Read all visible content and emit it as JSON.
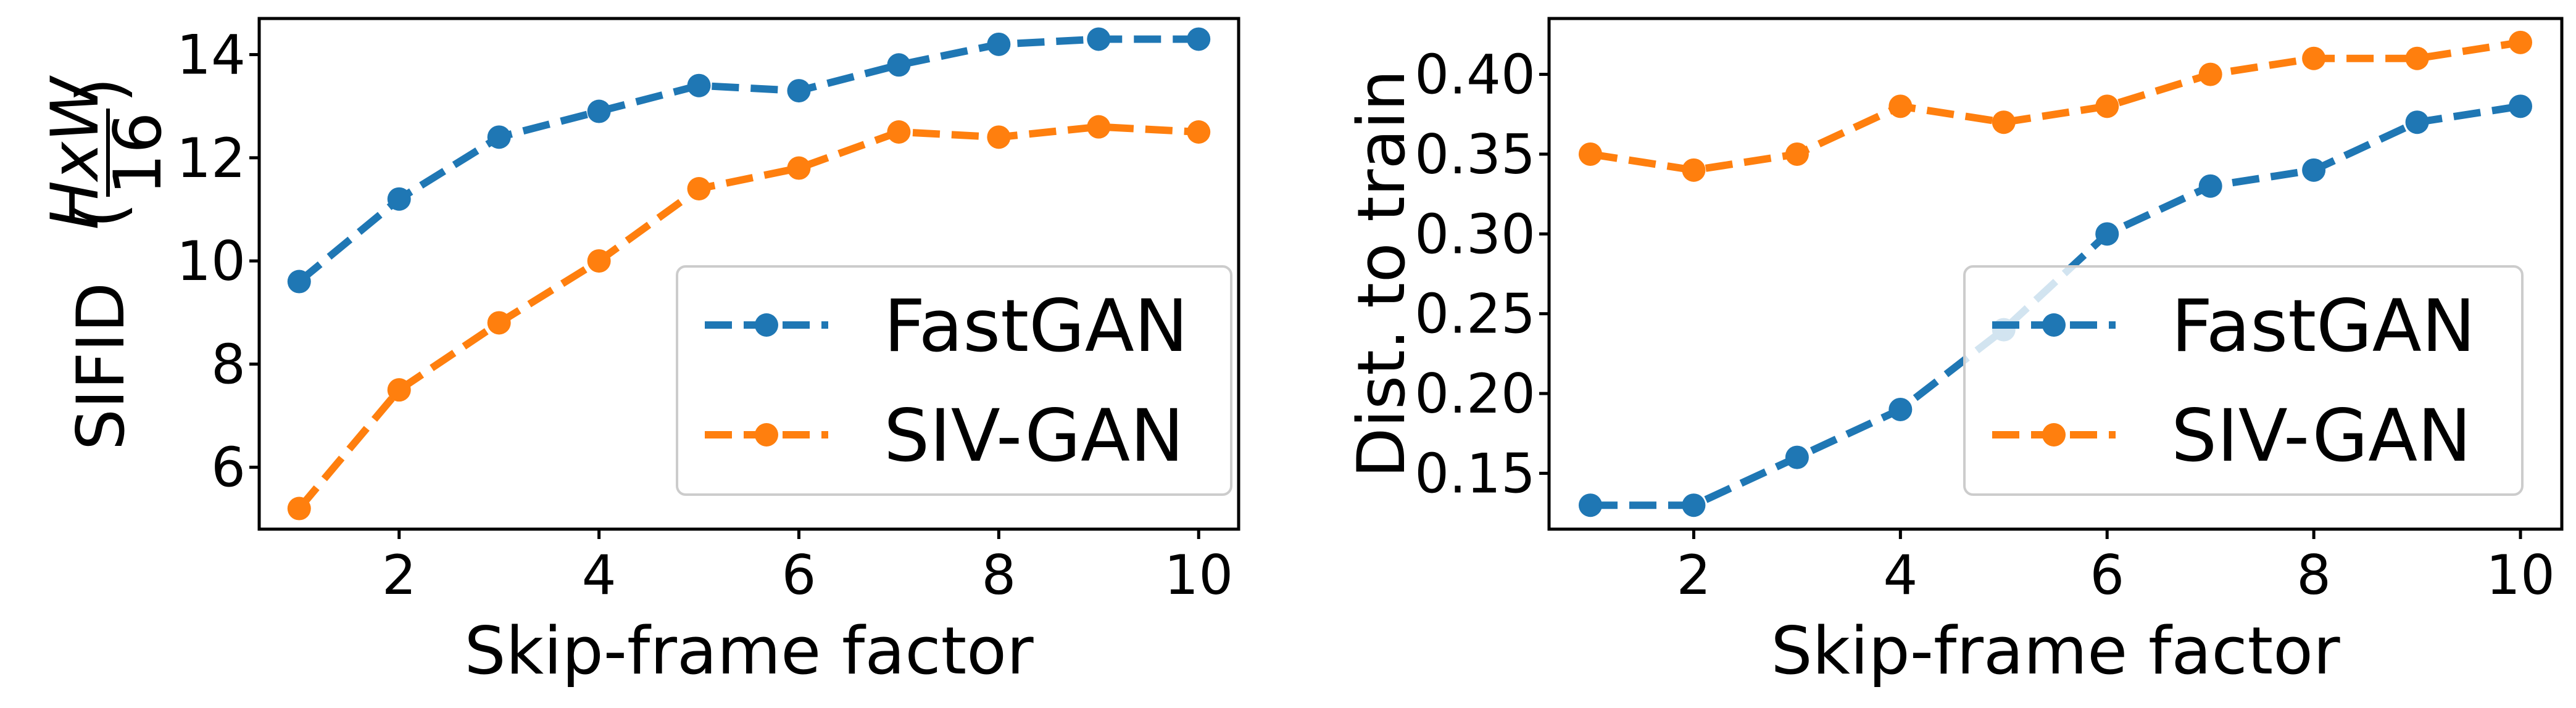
{
  "chart_data": [
    {
      "type": "line",
      "title": "",
      "xlabel": "Skip-frame factor",
      "ylabel": "SIFID",
      "ylabel_fraction": {
        "numerator": "HxW",
        "denominator": "16"
      },
      "xlim": [
        0.6,
        10.4
      ],
      "ylim": [
        4.8,
        14.7
      ],
      "xticks": [
        2,
        4,
        6,
        8,
        10
      ],
      "yticks": [
        6,
        8,
        10,
        12,
        14
      ],
      "legend_position": "lower-right",
      "grid": false,
      "x": [
        1,
        2,
        3,
        4,
        5,
        6,
        7,
        8,
        9,
        10
      ],
      "series": [
        {
          "name": "FastGAN",
          "color": "#1f77b4",
          "values": [
            9.6,
            11.2,
            12.4,
            12.9,
            13.4,
            13.3,
            13.8,
            14.2,
            14.3,
            14.3
          ]
        },
        {
          "name": "SIV-GAN",
          "color": "#ff7f0e",
          "values": [
            5.2,
            7.5,
            8.8,
            10.0,
            11.4,
            11.8,
            12.5,
            12.4,
            12.6,
            12.5
          ]
        }
      ]
    },
    {
      "type": "line",
      "title": "",
      "xlabel": "Skip-frame factor",
      "ylabel": "Dist. to train",
      "xlim": [
        0.6,
        10.4
      ],
      "ylim": [
        0.115,
        0.435
      ],
      "xticks": [
        2,
        4,
        6,
        8,
        10
      ],
      "yticks": [
        "0.15",
        "0.20",
        "0.25",
        "0.30",
        "0.35",
        "0.40"
      ],
      "legend_position": "lower-right",
      "grid": false,
      "x": [
        1,
        2,
        3,
        4,
        5,
        6,
        7,
        8,
        9,
        10
      ],
      "series": [
        {
          "name": "FastGAN",
          "color": "#1f77b4",
          "values": [
            0.13,
            0.13,
            0.16,
            0.19,
            0.24,
            0.3,
            0.33,
            0.34,
            0.37,
            0.38
          ]
        },
        {
          "name": "SIV-GAN",
          "color": "#ff7f0e",
          "values": [
            0.35,
            0.34,
            0.35,
            0.38,
            0.37,
            0.38,
            0.4,
            0.41,
            0.41,
            0.42
          ]
        }
      ]
    }
  ]
}
